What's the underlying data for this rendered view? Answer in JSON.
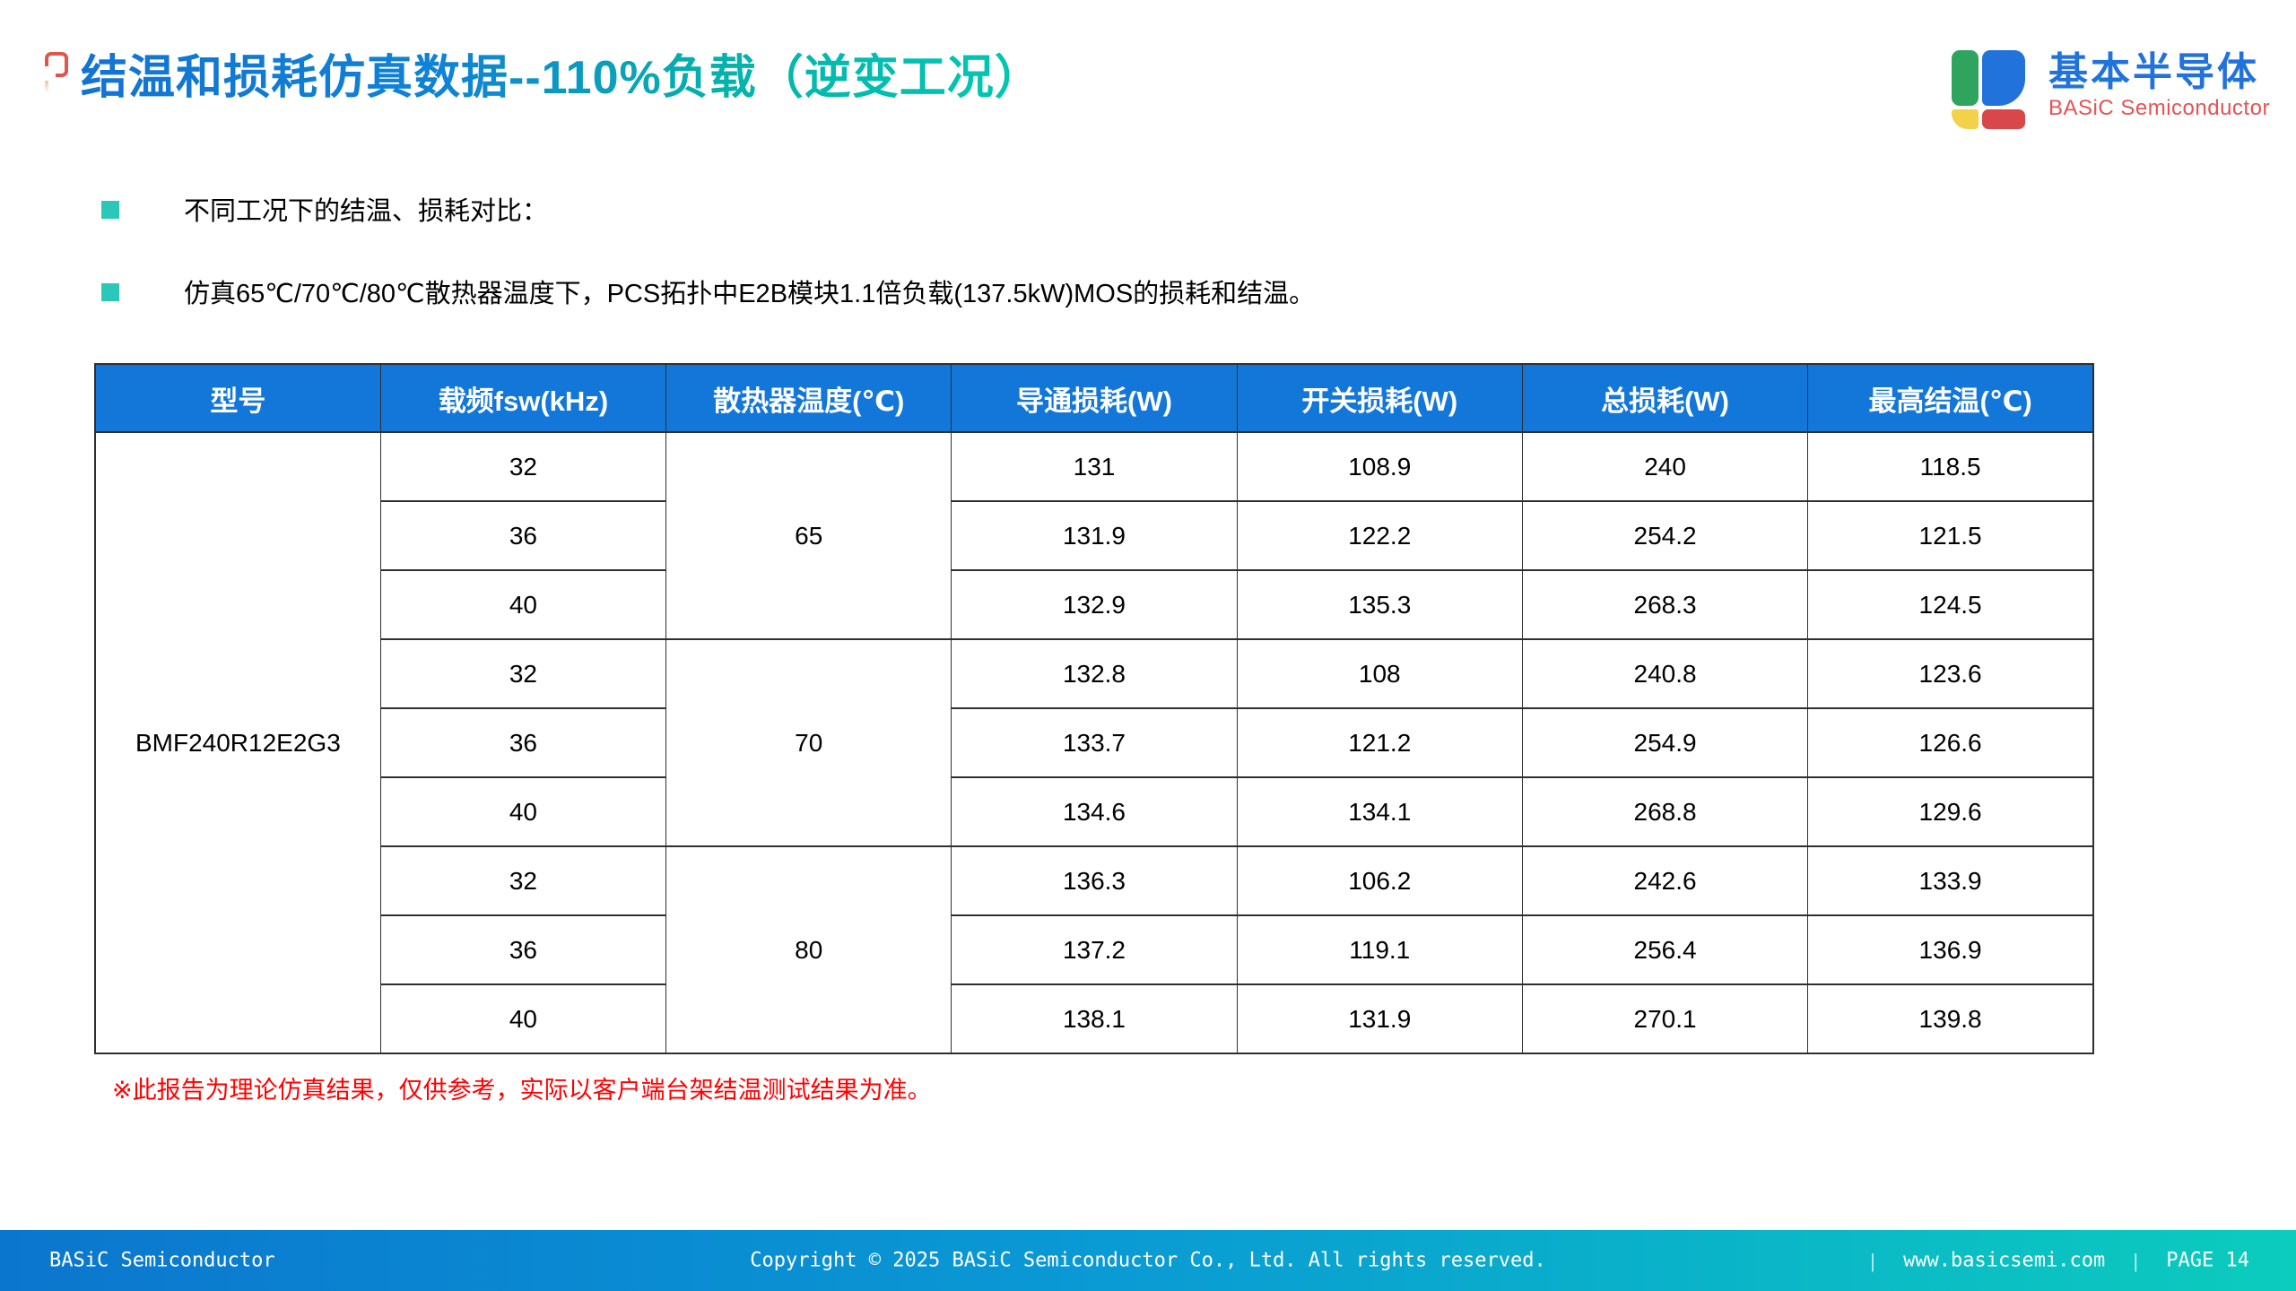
{
  "title": "结温和损耗仿真数据--110%负载（逆变工况）",
  "logo": {
    "cn": "基本半导体",
    "en": "BASiC Semiconductor",
    "colors": {
      "green": "#2ea45e",
      "blue": "#2272dc",
      "yellow": "#f2d24b",
      "red": "#d8484b"
    }
  },
  "bullets": [
    "不同工况下的结温、损耗对比：",
    "仿真65℃/70℃/80℃散热器温度下，PCS拓扑中E2B模块1.1倍负载(137.5kW)MOS的损耗和结温。"
  ],
  "table": {
    "headers": [
      "型号",
      "载频fsw(kHz)",
      "散热器温度(℃)",
      "导通损耗(W)",
      "开关损耗(W)",
      "总损耗(W)",
      "最高结温(℃)"
    ],
    "model": "BMF240R12E2G3",
    "header_bg": "#1377d9",
    "groups": [
      {
        "temp": "65",
        "rows": [
          {
            "fsw": "32",
            "cond_loss": "131",
            "sw_loss": "108.9",
            "total_loss": "240",
            "max_tj": "118.5"
          },
          {
            "fsw": "36",
            "cond_loss": "131.9",
            "sw_loss": "122.2",
            "total_loss": "254.2",
            "max_tj": "121.5"
          },
          {
            "fsw": "40",
            "cond_loss": "132.9",
            "sw_loss": "135.3",
            "total_loss": "268.3",
            "max_tj": "124.5"
          }
        ]
      },
      {
        "temp": "70",
        "rows": [
          {
            "fsw": "32",
            "cond_loss": "132.8",
            "sw_loss": "108",
            "total_loss": "240.8",
            "max_tj": "123.6"
          },
          {
            "fsw": "36",
            "cond_loss": "133.7",
            "sw_loss": "121.2",
            "total_loss": "254.9",
            "max_tj": "126.6"
          },
          {
            "fsw": "40",
            "cond_loss": "134.6",
            "sw_loss": "134.1",
            "total_loss": "268.8",
            "max_tj": "129.6"
          }
        ]
      },
      {
        "temp": "80",
        "rows": [
          {
            "fsw": "32",
            "cond_loss": "136.3",
            "sw_loss": "106.2",
            "total_loss": "242.6",
            "max_tj": "133.9"
          },
          {
            "fsw": "36",
            "cond_loss": "137.2",
            "sw_loss": "119.1",
            "total_loss": "256.4",
            "max_tj": "136.9"
          },
          {
            "fsw": "40",
            "cond_loss": "138.1",
            "sw_loss": "131.9",
            "total_loss": "270.1",
            "max_tj": "139.8"
          }
        ]
      }
    ]
  },
  "note": "※此报告为理论仿真结果，仅供参考，实际以客户端台架结温测试结果为准。",
  "footer": {
    "left": "BASiC Semiconductor",
    "center": "Copyright © 2025 BASiC Semiconductor Co., Ltd. All rights reserved.",
    "separator": "|",
    "website": "www.basicsemi.com",
    "page": "PAGE 14"
  },
  "colors": {
    "title_gradient_start": "#1273d3",
    "title_gradient_end": "#00c9b4",
    "bullet": "#2bc8ba",
    "table_header_bg": "#1377d9",
    "note_red": "#ff0000",
    "footer_gradient_start": "#0b76ce",
    "footer_gradient_end": "#0bccbd"
  }
}
